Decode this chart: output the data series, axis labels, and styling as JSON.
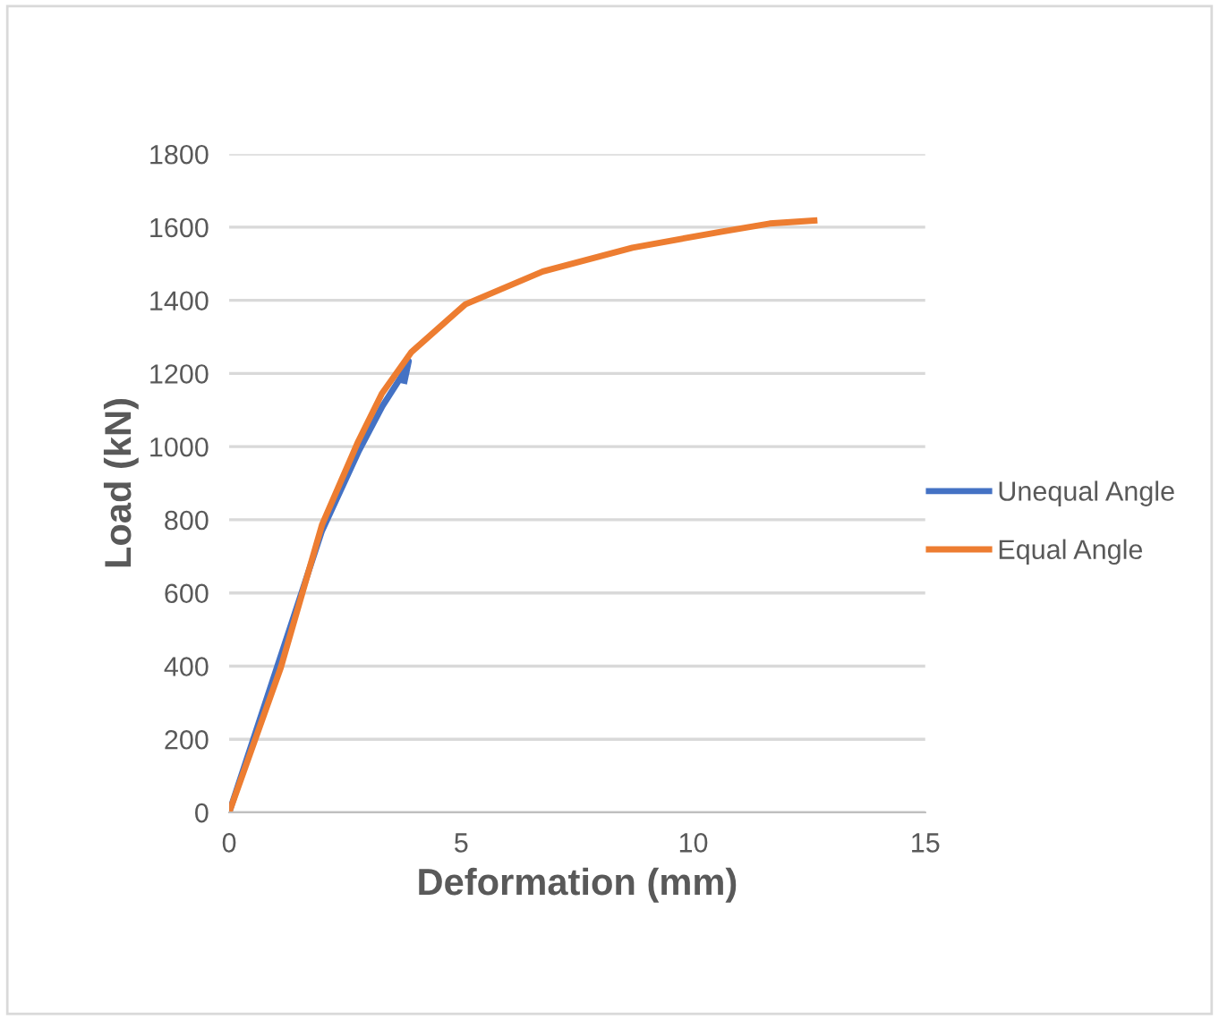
{
  "chart_data": {
    "type": "line",
    "xlabel": "Deformation (mm)",
    "ylabel": "Load (kN)",
    "series": [
      {
        "name": "Unequal Angle",
        "color": "#4472c4",
        "x": [
          0,
          2.0,
          2.8,
          3.3,
          3.7,
          3.87,
          3.78
        ],
        "values": [
          0,
          770,
          990,
          1110,
          1190,
          1234,
          1180
        ]
      },
      {
        "name": "Equal Angle",
        "color": "#ed7d31",
        "x": [
          0,
          1.11,
          2.0,
          2.78,
          3.29,
          3.93,
          5.09,
          6.76,
          8.69,
          10.62,
          11.65,
          12.61
        ],
        "values": [
          0,
          395,
          786,
          1014,
          1145,
          1259,
          1389,
          1479,
          1544,
          1588,
          1610,
          1618
        ]
      }
    ],
    "xlim": [
      0,
      15
    ],
    "xticks": [
      0,
      5,
      10,
      15
    ],
    "ylim": [
      0,
      1800
    ],
    "yticks": [
      0,
      200,
      400,
      600,
      800,
      1000,
      1200,
      1400,
      1600,
      1800
    ],
    "grid": "y",
    "legend": "right",
    "marker": "none",
    "line_style": "solid"
  }
}
